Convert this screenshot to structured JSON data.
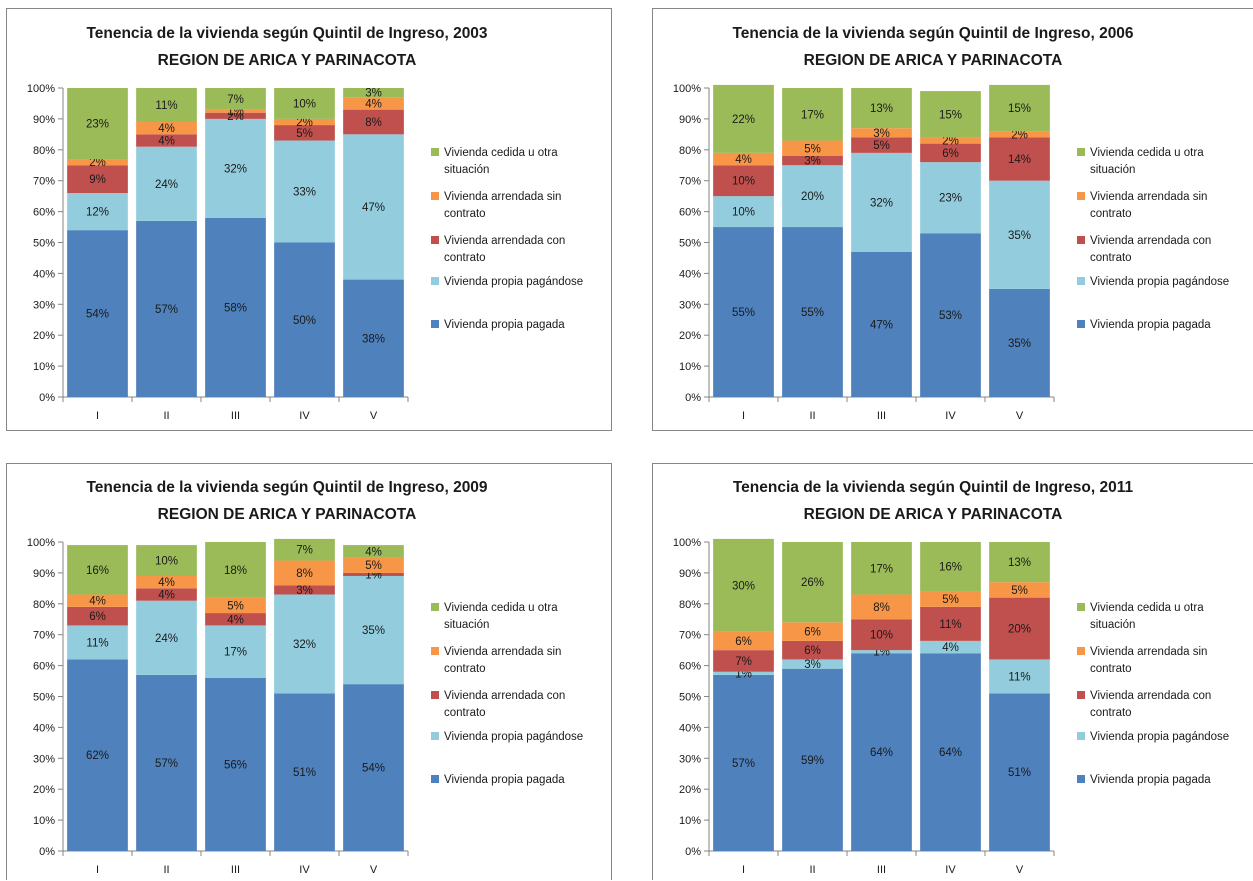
{
  "chart_data": [
    {
      "type": "bar",
      "stacked": true,
      "title": [
        "Tenencia de la vivienda según Quintil de Ingreso, 2003",
        "REGION DE ARICA Y PARINACOTA"
      ],
      "categories": [
        "I",
        "II",
        "III",
        "IV",
        "V"
      ],
      "yticks": [
        "0%",
        "10%",
        "20%",
        "30%",
        "40%",
        "50%",
        "60%",
        "70%",
        "80%",
        "90%",
        "100%"
      ],
      "ylim": [
        0,
        100
      ],
      "legend_position": "right",
      "series": [
        {
          "name": "Vivienda propia pagada",
          "color": "#4f81bd",
          "values": [
            54,
            57,
            58,
            50,
            38
          ],
          "labels": [
            "54%",
            "57%",
            "58%",
            "50%",
            "38%"
          ]
        },
        {
          "name": "Vivienda propia pagándose",
          "color": "#93cddd",
          "values": [
            12,
            24,
            32,
            33,
            47
          ],
          "labels": [
            "12%",
            "24%",
            "32%",
            "33%",
            "47%"
          ]
        },
        {
          "name": "Vivienda arrendada con contrato",
          "color": "#c0504d",
          "values": [
            9,
            4,
            2,
            5,
            8
          ],
          "labels": [
            "9%",
            "4%",
            "2%",
            "5%",
            "8%"
          ]
        },
        {
          "name": "Vivienda arrendada sin contrato",
          "color": "#f79646",
          "values": [
            2,
            4,
            1,
            2,
            4
          ],
          "labels": [
            "2%",
            "4%",
            "1%",
            "2%",
            "4%"
          ]
        },
        {
          "name": "Vivienda cedida u otra situación",
          "color": "#9bbb59",
          "values": [
            23,
            11,
            7,
            10,
            3
          ],
          "labels": [
            "23%",
            "11%",
            "7%",
            "10%",
            "3%"
          ]
        }
      ],
      "legend_labels": [
        [
          "Vivienda cedida u otra",
          "situación"
        ],
        [
          "Vivienda arrendada sin",
          "contrato"
        ],
        [
          "Vivienda arrendada con",
          "contrato"
        ],
        [
          "Vivienda propia pagándose"
        ],
        [
          "Vivienda propia pagada"
        ]
      ]
    },
    {
      "type": "bar",
      "stacked": true,
      "title": [
        "Tenencia de la vivienda según Quintil de Ingreso, 2006",
        "REGION DE ARICA Y PARINACOTA"
      ],
      "categories": [
        "I",
        "II",
        "III",
        "IV",
        "V"
      ],
      "yticks": [
        "0%",
        "10%",
        "20%",
        "30%",
        "40%",
        "50%",
        "60%",
        "70%",
        "80%",
        "90%",
        "100%"
      ],
      "ylim": [
        0,
        100
      ],
      "legend_position": "right",
      "series": [
        {
          "name": "Vivienda propia pagada",
          "color": "#4f81bd",
          "values": [
            55,
            55,
            47,
            53,
            35
          ],
          "labels": [
            "55%",
            "55%",
            "47%",
            "53%",
            "35%"
          ]
        },
        {
          "name": "Vivienda propia pagándose",
          "color": "#93cddd",
          "values": [
            10,
            20,
            32,
            23,
            35
          ],
          "labels": [
            "10%",
            "20%",
            "32%",
            "23%",
            "35%"
          ]
        },
        {
          "name": "Vivienda arrendada con contrato",
          "color": "#c0504d",
          "values": [
            10,
            3,
            5,
            6,
            14
          ],
          "labels": [
            "10%",
            "3%",
            "5%",
            "6%",
            "14%"
          ]
        },
        {
          "name": "Vivienda arrendada sin contrato",
          "color": "#f79646",
          "values": [
            4,
            5,
            3,
            2,
            2
          ],
          "labels": [
            "4%",
            "5%",
            "3%",
            "2%",
            "2%"
          ]
        },
        {
          "name": "Vivienda cedida u otra situación",
          "color": "#9bbb59",
          "values": [
            22,
            17,
            13,
            15,
            15
          ],
          "labels": [
            "22%",
            "17%",
            "13%",
            "15%",
            "15%"
          ]
        }
      ],
      "legend_labels": [
        [
          "Vivienda cedida u otra",
          "situación"
        ],
        [
          "Vivienda arrendada sin",
          "contrato"
        ],
        [
          "Vivienda arrendada con",
          "contrato"
        ],
        [
          "Vivienda propia pagándose"
        ],
        [
          "Vivienda propia pagada"
        ]
      ]
    },
    {
      "type": "bar",
      "stacked": true,
      "title": [
        "Tenencia de la vivienda según Quintil de Ingreso, 2009",
        "REGION DE ARICA Y PARINACOTA"
      ],
      "categories": [
        "I",
        "II",
        "III",
        "IV",
        "V"
      ],
      "yticks": [
        "0%",
        "10%",
        "20%",
        "30%",
        "40%",
        "50%",
        "60%",
        "70%",
        "80%",
        "90%",
        "100%"
      ],
      "ylim": [
        0,
        100
      ],
      "legend_position": "right",
      "series": [
        {
          "name": "Vivienda propia pagada",
          "color": "#4f81bd",
          "values": [
            62,
            57,
            56,
            51,
            54
          ],
          "labels": [
            "62%",
            "57%",
            "56%",
            "51%",
            "54%"
          ]
        },
        {
          "name": "Vivienda propia pagándose",
          "color": "#93cddd",
          "values": [
            11,
            24,
            17,
            32,
            35
          ],
          "labels": [
            "11%",
            "24%",
            "17%",
            "32%",
            "35%"
          ]
        },
        {
          "name": "Vivienda arrendada con contrato",
          "color": "#c0504d",
          "values": [
            6,
            4,
            4,
            3,
            1
          ],
          "labels": [
            "6%",
            "4%",
            "4%",
            "3%",
            "1%"
          ]
        },
        {
          "name": "Vivienda arrendada sin contrato",
          "color": "#f79646",
          "values": [
            4,
            4,
            5,
            8,
            5
          ],
          "labels": [
            "4%",
            "4%",
            "5%",
            "8%",
            "5%"
          ]
        },
        {
          "name": "Vivienda cedida u otra situación",
          "color": "#9bbb59",
          "values": [
            16,
            10,
            18,
            7,
            4
          ],
          "labels": [
            "16%",
            "10%",
            "18%",
            "7%",
            "4%"
          ]
        }
      ],
      "legend_labels": [
        [
          "Vivienda cedida u otra",
          "situación"
        ],
        [
          "Vivienda arrendada sin",
          "contrato"
        ],
        [
          "Vivienda arrendada con",
          "contrato"
        ],
        [
          "Vivienda propia pagándose"
        ],
        [
          "Vivienda propia pagada"
        ]
      ]
    },
    {
      "type": "bar",
      "stacked": true,
      "title": [
        "Tenencia de la vivienda según Quintil de Ingreso, 2011",
        "REGION DE ARICA Y PARINACOTA"
      ],
      "categories": [
        "I",
        "II",
        "III",
        "IV",
        "V"
      ],
      "yticks": [
        "0%",
        "10%",
        "20%",
        "30%",
        "40%",
        "50%",
        "60%",
        "70%",
        "80%",
        "90%",
        "100%"
      ],
      "ylim": [
        0,
        100
      ],
      "legend_position": "right",
      "series": [
        {
          "name": "Vivienda propia pagada",
          "color": "#4f81bd",
          "values": [
            57,
            59,
            64,
            64,
            51
          ],
          "labels": [
            "57%",
            "59%",
            "64%",
            "64%",
            "51%"
          ]
        },
        {
          "name": "Vivienda propia pagándose",
          "color": "#93cddd",
          "values": [
            1,
            3,
            1,
            4,
            11
          ],
          "labels": [
            "1%",
            "3%",
            "1%",
            "4%",
            "11%"
          ]
        },
        {
          "name": "Vivienda arrendada con contrato",
          "color": "#c0504d",
          "values": [
            7,
            6,
            10,
            11,
            20
          ],
          "labels": [
            "7%",
            "6%",
            "10%",
            "11%",
            "20%"
          ]
        },
        {
          "name": "Vivienda arrendada sin contrato",
          "color": "#f79646",
          "values": [
            6,
            6,
            8,
            5,
            5
          ],
          "labels": [
            "6%",
            "6%",
            "8%",
            "5%",
            "5%"
          ]
        },
        {
          "name": "Vivienda cedida u otra situación",
          "color": "#9bbb59",
          "values": [
            30,
            26,
            17,
            16,
            13
          ],
          "labels": [
            "30%",
            "26%",
            "17%",
            "16%",
            "13%"
          ]
        }
      ],
      "legend_labels": [
        [
          "Vivienda cedida u otra",
          "situación"
        ],
        [
          "Vivienda arrendada sin",
          "contrato"
        ],
        [
          "Vivienda arrendada con",
          "contrato"
        ],
        [
          "Vivienda propia pagándose"
        ],
        [
          "Vivienda propia pagada"
        ]
      ]
    }
  ]
}
